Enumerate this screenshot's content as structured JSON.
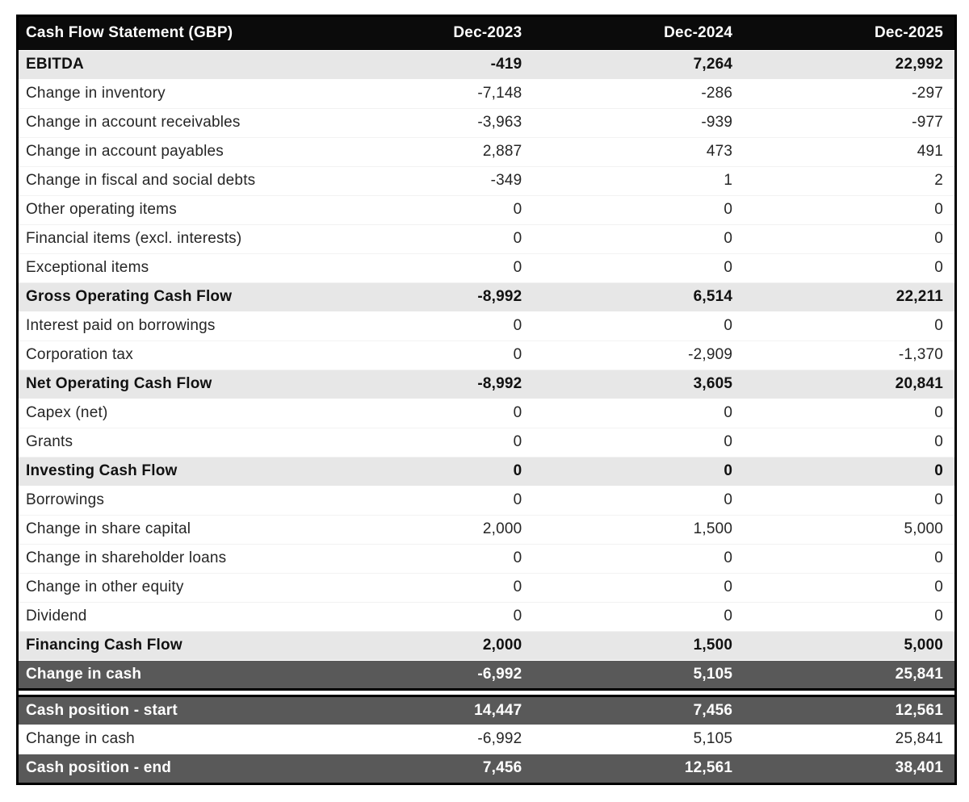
{
  "colors": {
    "header_bg": "#0b0b0b",
    "header_text": "#ffffff",
    "subtotal_bg": "#e7e7e7",
    "highlight_bg": "#595959",
    "highlight_text": "#ffffff",
    "border": "#000000"
  },
  "table": {
    "title": "Cash Flow Statement (GBP)",
    "columns": [
      "Dec-2023",
      "Dec-2024",
      "Dec-2025"
    ],
    "sections": [
      {
        "name": "cash-flow",
        "rows": [
          {
            "label": "EBITDA",
            "values": [
              "-419",
              "7,264",
              "22,992"
            ],
            "style": "subtotal"
          },
          {
            "label": "Change in inventory",
            "values": [
              "-7,148",
              "-286",
              "-297"
            ],
            "style": "normal"
          },
          {
            "label": "Change in account receivables",
            "values": [
              "-3,963",
              "-939",
              "-977"
            ],
            "style": "normal"
          },
          {
            "label": "Change in account payables",
            "values": [
              "2,887",
              "473",
              "491"
            ],
            "style": "normal"
          },
          {
            "label": "Change in fiscal and social debts",
            "values": [
              "-349",
              "1",
              "2"
            ],
            "style": "normal"
          },
          {
            "label": "Other operating items",
            "values": [
              "0",
              "0",
              "0"
            ],
            "style": "normal"
          },
          {
            "label": "Financial items (excl. interests)",
            "values": [
              "0",
              "0",
              "0"
            ],
            "style": "normal"
          },
          {
            "label": "Exceptional items",
            "values": [
              "0",
              "0",
              "0"
            ],
            "style": "normal"
          },
          {
            "label": "Gross Operating Cash Flow",
            "values": [
              "-8,992",
              "6,514",
              "22,211"
            ],
            "style": "subtotal"
          },
          {
            "label": "Interest paid on borrowings",
            "values": [
              "0",
              "0",
              "0"
            ],
            "style": "normal"
          },
          {
            "label": "Corporation tax",
            "values": [
              "0",
              "-2,909",
              "-1,370"
            ],
            "style": "normal"
          },
          {
            "label": "Net Operating Cash Flow",
            "values": [
              "-8,992",
              "3,605",
              "20,841"
            ],
            "style": "subtotal"
          },
          {
            "label": "Capex (net)",
            "values": [
              "0",
              "0",
              "0"
            ],
            "style": "normal"
          },
          {
            "label": "Grants",
            "values": [
              "0",
              "0",
              "0"
            ],
            "style": "normal"
          },
          {
            "label": "Investing Cash Flow",
            "values": [
              "0",
              "0",
              "0"
            ],
            "style": "subtotal"
          },
          {
            "label": "Borrowings",
            "values": [
              "0",
              "0",
              "0"
            ],
            "style": "normal"
          },
          {
            "label": "Change in share capital",
            "values": [
              "2,000",
              "1,500",
              "5,000"
            ],
            "style": "normal"
          },
          {
            "label": "Change in shareholder loans",
            "values": [
              "0",
              "0",
              "0"
            ],
            "style": "normal"
          },
          {
            "label": "Change in other equity",
            "values": [
              "0",
              "0",
              "0"
            ],
            "style": "normal"
          },
          {
            "label": "Dividend",
            "values": [
              "0",
              "0",
              "0"
            ],
            "style": "normal"
          },
          {
            "label": "Financing Cash Flow",
            "values": [
              "2,000",
              "1,500",
              "5,000"
            ],
            "style": "subtotal"
          },
          {
            "label": "Change in cash",
            "values": [
              "-6,992",
              "5,105",
              "25,841"
            ],
            "style": "highlight"
          }
        ]
      },
      {
        "name": "cash-position",
        "rows": [
          {
            "label": "Cash position - start",
            "values": [
              "14,447",
              "7,456",
              "12,561"
            ],
            "style": "highlight"
          },
          {
            "label": "Change in cash",
            "values": [
              "-6,992",
              "5,105",
              "25,841"
            ],
            "style": "normal"
          },
          {
            "label": "Cash position - end",
            "values": [
              "7,456",
              "12,561",
              "38,401"
            ],
            "style": "highlight"
          }
        ]
      }
    ]
  }
}
